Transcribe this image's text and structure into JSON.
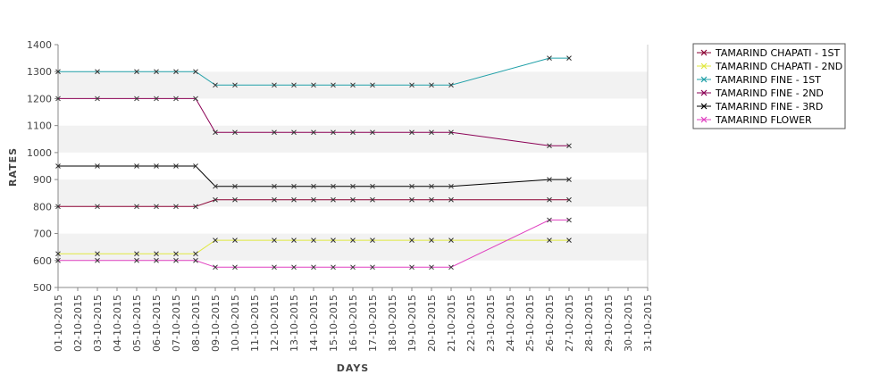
{
  "chart_data": {
    "type": "line",
    "title": "",
    "xlabel": "DAYS",
    "ylabel": "RATES",
    "ylim": [
      500,
      1400
    ],
    "yticks": [
      500,
      600,
      700,
      800,
      900,
      1000,
      1100,
      1200,
      1300,
      1400
    ],
    "grid": "alternating horizontal bands",
    "legend_position": "top-right, outside plot",
    "categories": [
      "01-10-2015",
      "02-10-2015",
      "03-10-2015",
      "04-10-2015",
      "05-10-2015",
      "06-10-2015",
      "07-10-2015",
      "08-10-2015",
      "09-10-2015",
      "10-10-2015",
      "11-10-2015",
      "12-10-2015",
      "13-10-2015",
      "14-10-2015",
      "15-10-2015",
      "16-10-2015",
      "17-10-2015",
      "18-10-2015",
      "19-10-2015",
      "20-10-2015",
      "21-10-2015",
      "22-10-2015",
      "23-10-2015",
      "24-10-2015",
      "25-10-2015",
      "26-10-2015",
      "27-10-2015",
      "28-10-2015",
      "29-10-2015",
      "30-10-2015",
      "31-10-2015"
    ],
    "series": [
      {
        "name": "TAMARIND CHAPATI - 1ST",
        "color": "#8b0033",
        "x": [
          "01-10-2015",
          "03-10-2015",
          "05-10-2015",
          "06-10-2015",
          "07-10-2015",
          "08-10-2015",
          "09-10-2015",
          "10-10-2015",
          "12-10-2015",
          "13-10-2015",
          "14-10-2015",
          "15-10-2015",
          "16-10-2015",
          "17-10-2015",
          "19-10-2015",
          "20-10-2015",
          "21-10-2015",
          "26-10-2015",
          "27-10-2015"
        ],
        "values": [
          800,
          800,
          800,
          800,
          800,
          800,
          825,
          825,
          825,
          825,
          825,
          825,
          825,
          825,
          825,
          825,
          825,
          825,
          825
        ]
      },
      {
        "name": "TAMARIND CHAPATI - 2ND",
        "color": "#e0e840",
        "x": [
          "01-10-2015",
          "03-10-2015",
          "05-10-2015",
          "06-10-2015",
          "07-10-2015",
          "08-10-2015",
          "09-10-2015",
          "10-10-2015",
          "12-10-2015",
          "13-10-2015",
          "14-10-2015",
          "15-10-2015",
          "16-10-2015",
          "17-10-2015",
          "19-10-2015",
          "20-10-2015",
          "21-10-2015",
          "26-10-2015",
          "27-10-2015"
        ],
        "values": [
          625,
          625,
          625,
          625,
          625,
          625,
          675,
          675,
          675,
          675,
          675,
          675,
          675,
          675,
          675,
          675,
          675,
          675,
          675
        ]
      },
      {
        "name": "TAMARIND FINE - 1ST",
        "color": "#20a0a8",
        "x": [
          "01-10-2015",
          "03-10-2015",
          "05-10-2015",
          "06-10-2015",
          "07-10-2015",
          "08-10-2015",
          "09-10-2015",
          "10-10-2015",
          "12-10-2015",
          "13-10-2015",
          "14-10-2015",
          "15-10-2015",
          "16-10-2015",
          "17-10-2015",
          "19-10-2015",
          "20-10-2015",
          "21-10-2015",
          "26-10-2015",
          "27-10-2015"
        ],
        "values": [
          1300,
          1300,
          1300,
          1300,
          1300,
          1300,
          1250,
          1250,
          1250,
          1250,
          1250,
          1250,
          1250,
          1250,
          1250,
          1250,
          1250,
          1350,
          1350
        ]
      },
      {
        "name": "TAMARIND FINE - 2ND",
        "color": "#8b0055",
        "x": [
          "01-10-2015",
          "03-10-2015",
          "05-10-2015",
          "06-10-2015",
          "07-10-2015",
          "08-10-2015",
          "09-10-2015",
          "10-10-2015",
          "12-10-2015",
          "13-10-2015",
          "14-10-2015",
          "15-10-2015",
          "16-10-2015",
          "17-10-2015",
          "19-10-2015",
          "20-10-2015",
          "21-10-2015",
          "26-10-2015",
          "27-10-2015"
        ],
        "values": [
          1200,
          1200,
          1200,
          1200,
          1200,
          1200,
          1075,
          1075,
          1075,
          1075,
          1075,
          1075,
          1075,
          1075,
          1075,
          1075,
          1075,
          1025,
          1025
        ]
      },
      {
        "name": "TAMARIND FINE - 3RD",
        "color": "#000000",
        "x": [
          "01-10-2015",
          "03-10-2015",
          "05-10-2015",
          "06-10-2015",
          "07-10-2015",
          "08-10-2015",
          "09-10-2015",
          "10-10-2015",
          "12-10-2015",
          "13-10-2015",
          "14-10-2015",
          "15-10-2015",
          "16-10-2015",
          "17-10-2015",
          "19-10-2015",
          "20-10-2015",
          "21-10-2015",
          "26-10-2015",
          "27-10-2015"
        ],
        "values": [
          950,
          950,
          950,
          950,
          950,
          950,
          875,
          875,
          875,
          875,
          875,
          875,
          875,
          875,
          875,
          875,
          875,
          900,
          900
        ]
      },
      {
        "name": "TAMARIND FLOWER",
        "color": "#e040c0",
        "x": [
          "01-10-2015",
          "03-10-2015",
          "05-10-2015",
          "06-10-2015",
          "07-10-2015",
          "08-10-2015",
          "09-10-2015",
          "10-10-2015",
          "12-10-2015",
          "13-10-2015",
          "14-10-2015",
          "15-10-2015",
          "16-10-2015",
          "17-10-2015",
          "19-10-2015",
          "20-10-2015",
          "21-10-2015",
          "26-10-2015",
          "27-10-2015"
        ],
        "values": [
          600,
          600,
          600,
          600,
          600,
          600,
          575,
          575,
          575,
          575,
          575,
          575,
          575,
          575,
          575,
          575,
          575,
          750,
          750
        ]
      }
    ]
  }
}
